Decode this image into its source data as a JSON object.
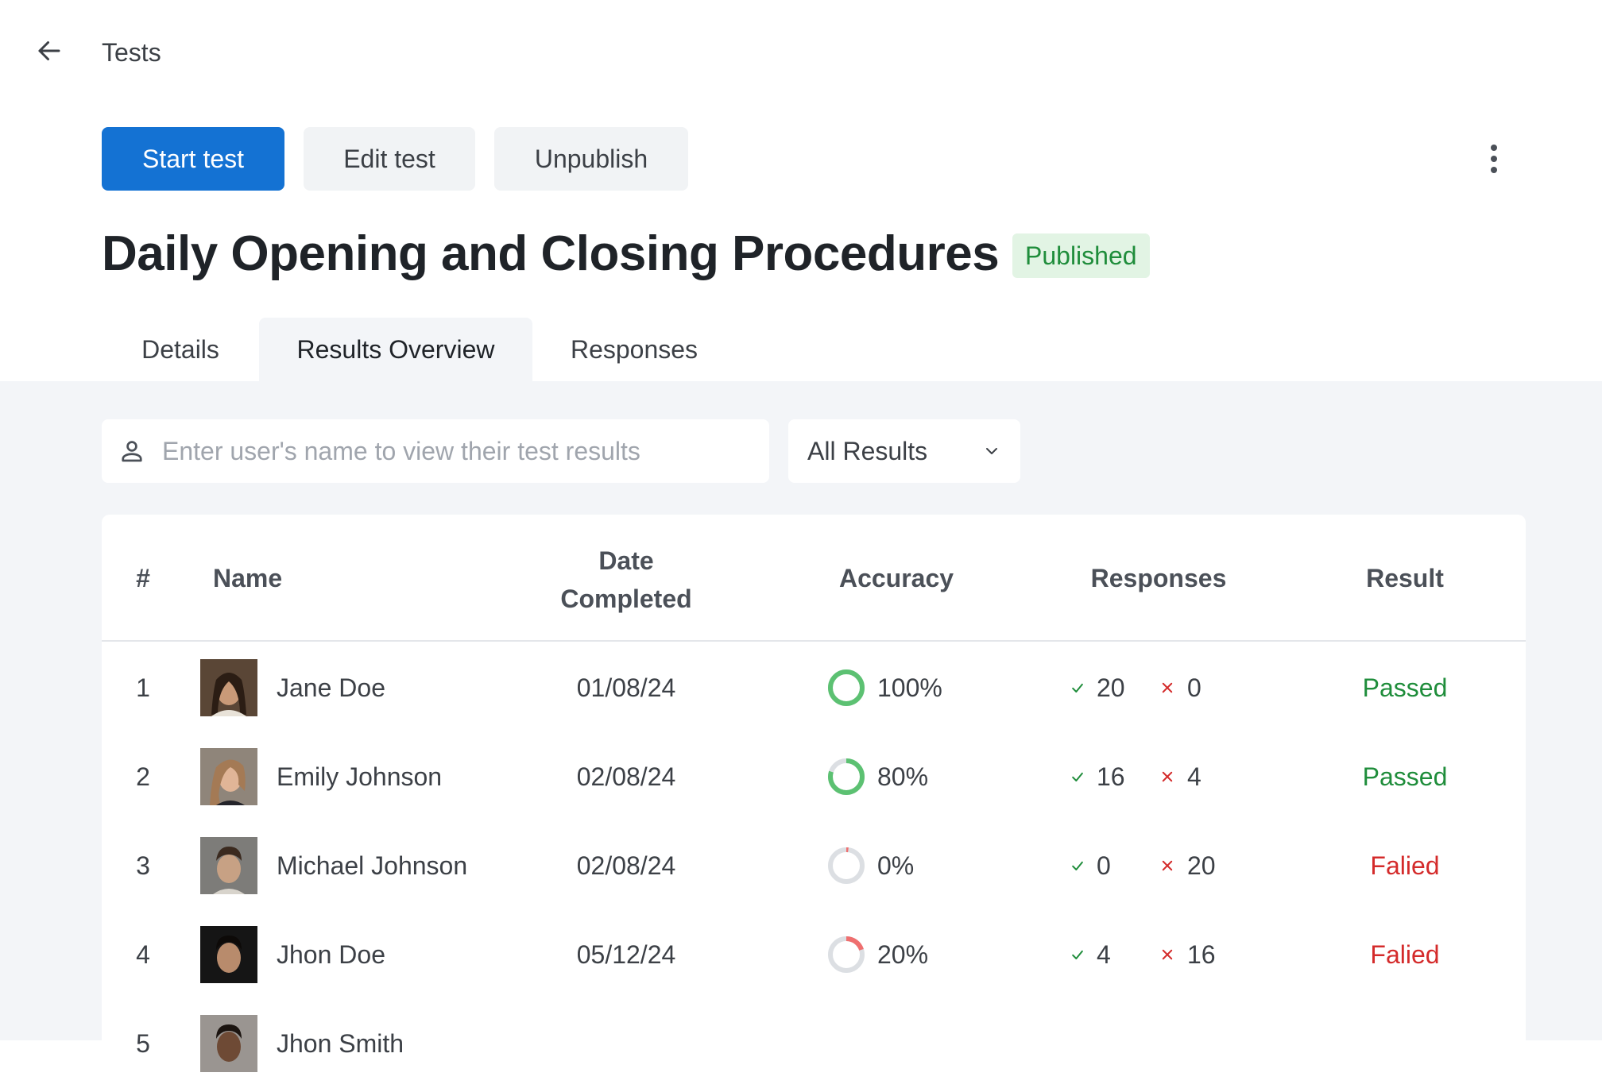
{
  "header": {
    "breadcrumb": "Tests"
  },
  "toolbar": {
    "start_label": "Start test",
    "edit_label": "Edit test",
    "unpublish_label": "Unpublish"
  },
  "test": {
    "title": "Daily Opening and Closing Procedures",
    "status": "Published"
  },
  "tabs": [
    {
      "label": "Details",
      "active": false
    },
    {
      "label": "Results Overview",
      "active": true
    },
    {
      "label": "Responses",
      "active": false
    }
  ],
  "filters": {
    "search_placeholder": "Enter user's name to view their test results",
    "search_value": "",
    "result_filter": "All Results"
  },
  "table": {
    "columns": [
      "#",
      "Name",
      "Date Completed",
      "Accuracy",
      "Responses",
      "Result"
    ],
    "rows": [
      {
        "num": "1",
        "name": "Jane Doe",
        "date": "01/08/24",
        "accuracy": "100%",
        "accuracy_value": 100,
        "correct": "20",
        "incorrect": "0",
        "result": "Passed"
      },
      {
        "num": "2",
        "name": "Emily Johnson",
        "date": "02/08/24",
        "accuracy": "80%",
        "accuracy_value": 80,
        "correct": "16",
        "incorrect": "4",
        "result": "Passed"
      },
      {
        "num": "3",
        "name": "Michael Johnson",
        "date": "02/08/24",
        "accuracy": "0%",
        "accuracy_value": 0,
        "correct": "0",
        "incorrect": "20",
        "result": "Falied"
      },
      {
        "num": "4",
        "name": "Jhon Doe",
        "date": "05/12/24",
        "accuracy": "20%",
        "accuracy_value": 20,
        "correct": "4",
        "incorrect": "16",
        "result": "Falied"
      },
      {
        "num": "5",
        "name": "Jhon Smith"
      }
    ]
  },
  "colors": {
    "primary": "#1472d3",
    "pass": "#1f8d3b",
    "fail": "#d42b2b",
    "ring_good": "#5cc172",
    "ring_bad": "#ef6f6f",
    "ring_track": "#dcdfe3",
    "page_bg": "#f3f5f8"
  },
  "icons": {
    "back": "arrow-left-icon",
    "more": "more-vertical-icon",
    "user": "user-icon",
    "chevron": "chevron-down-icon",
    "check": "check-icon",
    "cross": "cross-icon"
  }
}
